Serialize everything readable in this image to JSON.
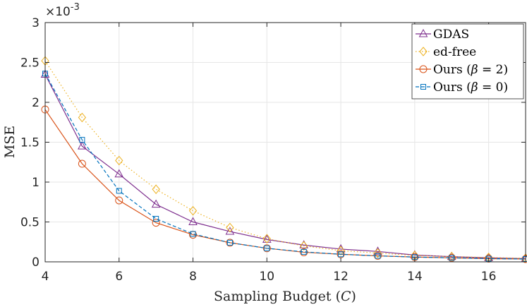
{
  "chart_data": {
    "type": "line",
    "title": "",
    "xlabel_main": "Sampling Budget (",
    "xlabel_var": "C",
    "xlabel_end": ")",
    "ylabel": "MSE",
    "y_multiplier_base": "×10",
    "y_multiplier_exp": "-3",
    "xlim": [
      4,
      17
    ],
    "ylim": [
      0,
      3
    ],
    "xticks": [
      4,
      6,
      8,
      10,
      12,
      14,
      16
    ],
    "xtick_labels": [
      "4",
      "6",
      "8",
      "10",
      "12",
      "14",
      "16"
    ],
    "yticks": [
      0,
      0.5,
      1,
      1.5,
      2,
      2.5,
      3
    ],
    "ytick_labels": [
      "0",
      "0.5",
      "1",
      "1.5",
      "2",
      "2.5",
      "3"
    ],
    "grid": true,
    "legend_position": "top-right",
    "x": [
      4,
      5,
      6,
      7,
      8,
      9,
      10,
      11,
      12,
      13,
      14,
      15,
      16,
      17
    ],
    "series": [
      {
        "name": "GDAS",
        "legend_main": "GDAS",
        "legend_var": "",
        "legend_end": "",
        "color": "#7E2F8E",
        "marker": "triangle",
        "dash": "solid",
        "values": [
          2.35,
          1.45,
          1.1,
          0.72,
          0.5,
          0.38,
          0.28,
          0.21,
          0.16,
          0.13,
          0.085,
          0.065,
          0.05,
          0.04
        ]
      },
      {
        "name": "ed-free",
        "legend_main": "ed-free",
        "legend_var": "",
        "legend_end": "",
        "color": "#EDB120",
        "marker": "diamond",
        "dash": "dotted",
        "values": [
          2.52,
          1.81,
          1.27,
          0.91,
          0.64,
          0.43,
          0.29,
          0.2,
          0.14,
          0.11,
          0.08,
          0.065,
          0.055,
          0.045
        ]
      },
      {
        "name": "Ours (β = 2)",
        "legend_main": "Ours (",
        "legend_var": "β",
        "legend_end": " = 2)",
        "color": "#D95319",
        "marker": "circle",
        "dash": "solid",
        "values": [
          1.91,
          1.23,
          0.77,
          0.49,
          0.34,
          0.24,
          0.17,
          0.12,
          0.095,
          0.075,
          0.06,
          0.05,
          0.04,
          0.035
        ]
      },
      {
        "name": "Ours (β = 0)",
        "legend_main": "Ours (",
        "legend_var": "β",
        "legend_end": " = 0)",
        "color": "#0072BD",
        "marker": "square",
        "dash": "dashed",
        "values": [
          2.36,
          1.53,
          0.89,
          0.54,
          0.35,
          0.24,
          0.17,
          0.125,
          0.095,
          0.075,
          0.06,
          0.05,
          0.04,
          0.035
        ]
      }
    ]
  }
}
